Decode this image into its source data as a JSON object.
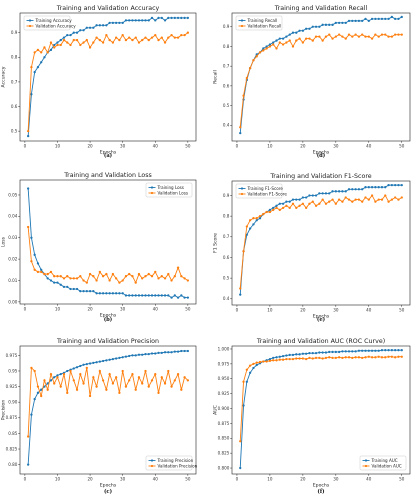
{
  "colors": {
    "training": "#1f77b4",
    "validation": "#ff7f0e"
  },
  "chart_data": [
    {
      "type": "line",
      "caption": "(a)",
      "title": "Training and Validation Accuracy",
      "xlabel": "Epochs",
      "ylabel": "Accuracy",
      "xlim": [
        -1.5,
        52.5
      ],
      "ylim": [
        0.46,
        0.98
      ],
      "xticks": [
        0,
        10,
        20,
        30,
        40,
        50
      ],
      "yticks": [
        0.5,
        0.6,
        0.7,
        0.8,
        0.9
      ],
      "legend": "top-left",
      "x": [
        1,
        2,
        3,
        4,
        5,
        6,
        7,
        8,
        9,
        10,
        11,
        12,
        13,
        14,
        15,
        16,
        17,
        18,
        19,
        20,
        21,
        22,
        23,
        24,
        25,
        26,
        27,
        28,
        29,
        30,
        31,
        32,
        33,
        34,
        35,
        36,
        37,
        38,
        39,
        40,
        41,
        42,
        43,
        44,
        45,
        46,
        47,
        48,
        49,
        50
      ],
      "series": [
        {
          "name": "Training Accuracy",
          "values": [
            0.48,
            0.65,
            0.74,
            0.76,
            0.78,
            0.8,
            0.82,
            0.83,
            0.85,
            0.86,
            0.87,
            0.88,
            0.89,
            0.89,
            0.9,
            0.9,
            0.91,
            0.91,
            0.92,
            0.92,
            0.92,
            0.93,
            0.93,
            0.93,
            0.93,
            0.94,
            0.94,
            0.94,
            0.94,
            0.94,
            0.95,
            0.95,
            0.95,
            0.95,
            0.95,
            0.95,
            0.95,
            0.95,
            0.96,
            0.95,
            0.96,
            0.96,
            0.95,
            0.96,
            0.96,
            0.96,
            0.96,
            0.96,
            0.96,
            0.96
          ]
        },
        {
          "name": "Validation Accuracy",
          "values": [
            0.5,
            0.76,
            0.82,
            0.83,
            0.82,
            0.84,
            0.82,
            0.86,
            0.84,
            0.85,
            0.85,
            0.87,
            0.86,
            0.85,
            0.87,
            0.87,
            0.85,
            0.86,
            0.87,
            0.84,
            0.86,
            0.88,
            0.87,
            0.86,
            0.89,
            0.87,
            0.86,
            0.88,
            0.87,
            0.89,
            0.87,
            0.88,
            0.87,
            0.88,
            0.86,
            0.87,
            0.88,
            0.87,
            0.88,
            0.89,
            0.87,
            0.88,
            0.86,
            0.88,
            0.89,
            0.88,
            0.88,
            0.89,
            0.89,
            0.9
          ]
        }
      ]
    },
    {
      "type": "line",
      "caption": "(d)",
      "title": "Training and Validation Recall",
      "xlabel": "Epochs",
      "ylabel": "Recall",
      "xlim": [
        -1.5,
        52.5
      ],
      "ylim": [
        0.32,
        0.97
      ],
      "xticks": [
        0,
        10,
        20,
        30,
        40,
        50
      ],
      "yticks": [
        0.4,
        0.5,
        0.6,
        0.7,
        0.8,
        0.9
      ],
      "legend": "top-left",
      "x": [
        1,
        2,
        3,
        4,
        5,
        6,
        7,
        8,
        9,
        10,
        11,
        12,
        13,
        14,
        15,
        16,
        17,
        18,
        19,
        20,
        21,
        22,
        23,
        24,
        25,
        26,
        27,
        28,
        29,
        30,
        31,
        32,
        33,
        34,
        35,
        36,
        37,
        38,
        39,
        40,
        41,
        42,
        43,
        44,
        45,
        46,
        47,
        48,
        49,
        50
      ],
      "series": [
        {
          "name": "Training Recall",
          "values": [
            0.36,
            0.53,
            0.63,
            0.69,
            0.73,
            0.76,
            0.77,
            0.79,
            0.8,
            0.81,
            0.82,
            0.83,
            0.84,
            0.84,
            0.85,
            0.86,
            0.87,
            0.87,
            0.88,
            0.88,
            0.89,
            0.89,
            0.9,
            0.9,
            0.9,
            0.91,
            0.91,
            0.91,
            0.91,
            0.92,
            0.92,
            0.92,
            0.92,
            0.93,
            0.93,
            0.93,
            0.93,
            0.93,
            0.94,
            0.93,
            0.94,
            0.94,
            0.94,
            0.94,
            0.94,
            0.94,
            0.95,
            0.94,
            0.94,
            0.95
          ]
        },
        {
          "name": "Validation Recall",
          "values": [
            0.39,
            0.55,
            0.64,
            0.69,
            0.73,
            0.75,
            0.77,
            0.78,
            0.79,
            0.8,
            0.81,
            0.79,
            0.82,
            0.81,
            0.82,
            0.83,
            0.8,
            0.83,
            0.84,
            0.82,
            0.84,
            0.84,
            0.83,
            0.85,
            0.85,
            0.83,
            0.85,
            0.86,
            0.84,
            0.85,
            0.86,
            0.85,
            0.84,
            0.86,
            0.85,
            0.86,
            0.85,
            0.86,
            0.85,
            0.85,
            0.84,
            0.86,
            0.85,
            0.86,
            0.86,
            0.85,
            0.85,
            0.86,
            0.86,
            0.86
          ]
        }
      ]
    },
    {
      "type": "line",
      "caption": "(b)",
      "title": "Training and Validation Loss",
      "xlabel": "Epochs",
      "ylabel": "Loss",
      "xlim": [
        -1.5,
        52.5
      ],
      "ylim": [
        -0.001,
        0.057
      ],
      "xticks": [
        0,
        10,
        20,
        30,
        40,
        50
      ],
      "yticks": [
        0.0,
        0.01,
        0.02,
        0.03,
        0.04,
        0.05
      ],
      "ytick_labels": [
        "0.00",
        "0.01",
        "0.02",
        "0.03",
        "0.04",
        "0.05"
      ],
      "legend": "top-right",
      "x": [
        1,
        2,
        3,
        4,
        5,
        6,
        7,
        8,
        9,
        10,
        11,
        12,
        13,
        14,
        15,
        16,
        17,
        18,
        19,
        20,
        21,
        22,
        23,
        24,
        25,
        26,
        27,
        28,
        29,
        30,
        31,
        32,
        33,
        34,
        35,
        36,
        37,
        38,
        39,
        40,
        41,
        42,
        43,
        44,
        45,
        46,
        47,
        48,
        49,
        50
      ],
      "series": [
        {
          "name": "Training Loss",
          "values": [
            0.053,
            0.03,
            0.022,
            0.018,
            0.015,
            0.013,
            0.011,
            0.01,
            0.009,
            0.009,
            0.008,
            0.007,
            0.007,
            0.006,
            0.006,
            0.006,
            0.005,
            0.005,
            0.005,
            0.005,
            0.005,
            0.004,
            0.004,
            0.004,
            0.004,
            0.004,
            0.004,
            0.004,
            0.004,
            0.004,
            0.003,
            0.003,
            0.003,
            0.003,
            0.003,
            0.003,
            0.003,
            0.003,
            0.003,
            0.003,
            0.003,
            0.003,
            0.003,
            0.003,
            0.002,
            0.003,
            0.002,
            0.003,
            0.002,
            0.002
          ]
        },
        {
          "name": "Validation Loss",
          "values": [
            0.035,
            0.019,
            0.015,
            0.014,
            0.014,
            0.013,
            0.013,
            0.014,
            0.012,
            0.012,
            0.012,
            0.011,
            0.012,
            0.011,
            0.011,
            0.011,
            0.012,
            0.01,
            0.009,
            0.013,
            0.012,
            0.01,
            0.014,
            0.012,
            0.013,
            0.01,
            0.013,
            0.011,
            0.009,
            0.01,
            0.012,
            0.013,
            0.012,
            0.009,
            0.013,
            0.011,
            0.012,
            0.013,
            0.012,
            0.014,
            0.011,
            0.012,
            0.011,
            0.013,
            0.01,
            0.012,
            0.016,
            0.012,
            0.011,
            0.01
          ]
        }
      ]
    },
    {
      "type": "line",
      "caption": "(e)",
      "title": "Training and Validation F1-Score",
      "xlabel": "Epochs",
      "ylabel": "F1 Score",
      "xlim": [
        -1.5,
        52.5
      ],
      "ylim": [
        0.37,
        0.97
      ],
      "xticks": [
        0,
        10,
        20,
        30,
        40,
        50
      ],
      "yticks": [
        0.4,
        0.5,
        0.6,
        0.7,
        0.8,
        0.9
      ],
      "legend": "top-left",
      "x": [
        1,
        2,
        3,
        4,
        5,
        6,
        7,
        8,
        9,
        10,
        11,
        12,
        13,
        14,
        15,
        16,
        17,
        18,
        19,
        20,
        21,
        22,
        23,
        24,
        25,
        26,
        27,
        28,
        29,
        30,
        31,
        32,
        33,
        34,
        35,
        36,
        37,
        38,
        39,
        40,
        41,
        42,
        43,
        44,
        45,
        46,
        47,
        48,
        49,
        50
      ],
      "series": [
        {
          "name": "Training F1-Score",
          "values": [
            0.42,
            0.63,
            0.71,
            0.74,
            0.76,
            0.78,
            0.79,
            0.81,
            0.82,
            0.83,
            0.84,
            0.85,
            0.86,
            0.86,
            0.87,
            0.87,
            0.88,
            0.88,
            0.88,
            0.89,
            0.89,
            0.9,
            0.9,
            0.9,
            0.91,
            0.91,
            0.91,
            0.91,
            0.92,
            0.92,
            0.92,
            0.92,
            0.92,
            0.93,
            0.93,
            0.93,
            0.93,
            0.93,
            0.94,
            0.94,
            0.94,
            0.94,
            0.94,
            0.94,
            0.94,
            0.95,
            0.95,
            0.95,
            0.95,
            0.95
          ]
        },
        {
          "name": "Validation F1-Score",
          "values": [
            0.45,
            0.63,
            0.75,
            0.78,
            0.79,
            0.79,
            0.8,
            0.81,
            0.82,
            0.82,
            0.83,
            0.84,
            0.83,
            0.84,
            0.85,
            0.84,
            0.86,
            0.84,
            0.85,
            0.86,
            0.84,
            0.86,
            0.87,
            0.85,
            0.86,
            0.88,
            0.86,
            0.87,
            0.88,
            0.86,
            0.88,
            0.87,
            0.89,
            0.88,
            0.87,
            0.88,
            0.88,
            0.87,
            0.89,
            0.88,
            0.9,
            0.87,
            0.88,
            0.88,
            0.9,
            0.87,
            0.88,
            0.89,
            0.88,
            0.89
          ]
        }
      ]
    },
    {
      "type": "line",
      "caption": "(c)",
      "title": "Training and Validation Precision",
      "xlabel": "Epochs",
      "ylabel": "Precision",
      "xlim": [
        -1.5,
        52.5
      ],
      "ylim": [
        0.785,
        0.99
      ],
      "xticks": [
        0,
        10,
        20,
        30,
        40,
        50
      ],
      "yticks": [
        0.8,
        0.825,
        0.85,
        0.875,
        0.9,
        0.925,
        0.95,
        0.975
      ],
      "ytick_labels": [
        "0.80",
        "0.825",
        "0.85",
        "0.875",
        "0.90",
        "0.925",
        "0.95",
        "0.975"
      ],
      "legend": "bottom-right",
      "x": [
        1,
        2,
        3,
        4,
        5,
        6,
        7,
        8,
        9,
        10,
        11,
        12,
        13,
        14,
        15,
        16,
        17,
        18,
        19,
        20,
        21,
        22,
        23,
        24,
        25,
        26,
        27,
        28,
        29,
        30,
        31,
        32,
        33,
        34,
        35,
        36,
        37,
        38,
        39,
        40,
        41,
        42,
        43,
        44,
        45,
        46,
        47,
        48,
        49,
        50
      ],
      "series": [
        {
          "name": "Training Precision",
          "values": [
            0.8,
            0.88,
            0.905,
            0.915,
            0.92,
            0.925,
            0.93,
            0.935,
            0.94,
            0.943,
            0.945,
            0.947,
            0.95,
            0.952,
            0.954,
            0.956,
            0.958,
            0.96,
            0.961,
            0.962,
            0.963,
            0.964,
            0.965,
            0.966,
            0.967,
            0.968,
            0.969,
            0.97,
            0.971,
            0.972,
            0.973,
            0.974,
            0.975,
            0.975,
            0.976,
            0.976,
            0.977,
            0.977,
            0.978,
            0.978,
            0.979,
            0.979,
            0.98,
            0.98,
            0.98,
            0.981,
            0.981,
            0.982,
            0.982,
            0.982
          ]
        },
        {
          "name": "Validation Precision",
          "values": [
            0.845,
            0.955,
            0.95,
            0.925,
            0.91,
            0.935,
            0.92,
            0.945,
            0.93,
            0.94,
            0.925,
            0.945,
            0.915,
            0.95,
            0.935,
            0.92,
            0.945,
            0.93,
            0.955,
            0.91,
            0.94,
            0.925,
            0.95,
            0.935,
            0.92,
            0.945,
            0.93,
            0.94,
            0.915,
            0.95,
            0.925,
            0.935,
            0.945,
            0.92,
            0.94,
            0.93,
            0.95,
            0.925,
            0.935,
            0.945,
            0.915,
            0.94,
            0.93,
            0.95,
            0.925,
            0.935,
            0.945,
            0.92,
            0.94,
            0.935
          ]
        }
      ]
    },
    {
      "type": "line",
      "caption": "(f)",
      "title": "Training and Validation AUC (ROC Curve)",
      "xlabel": "Epochs",
      "ylabel": "AUC",
      "xlim": [
        -1.5,
        52.5
      ],
      "ylim": [
        0.79,
        1.005
      ],
      "xticks": [
        0,
        10,
        20,
        30,
        40,
        50
      ],
      "yticks": [
        0.8,
        0.825,
        0.85,
        0.875,
        0.9,
        0.925,
        0.95,
        0.975,
        1.0
      ],
      "ytick_labels": [
        "0.800",
        "0.825",
        "0.850",
        "0.875",
        "0.900",
        "0.925",
        "0.950",
        "0.975",
        "1.000"
      ],
      "legend": "bottom-right",
      "x": [
        1,
        2,
        3,
        4,
        5,
        6,
        7,
        8,
        9,
        10,
        11,
        12,
        13,
        14,
        15,
        16,
        17,
        18,
        19,
        20,
        21,
        22,
        23,
        24,
        25,
        26,
        27,
        28,
        29,
        30,
        31,
        32,
        33,
        34,
        35,
        36,
        37,
        38,
        39,
        40,
        41,
        42,
        43,
        44,
        45,
        46,
        47,
        48,
        49,
        50
      ],
      "series": [
        {
          "name": "Training AUC",
          "values": [
            0.8,
            0.905,
            0.945,
            0.96,
            0.968,
            0.973,
            0.976,
            0.979,
            0.981,
            0.983,
            0.985,
            0.986,
            0.987,
            0.988,
            0.989,
            0.99,
            0.99,
            0.991,
            0.991,
            0.992,
            0.992,
            0.993,
            0.993,
            0.993,
            0.994,
            0.994,
            0.994,
            0.995,
            0.995,
            0.995,
            0.995,
            0.996,
            0.996,
            0.996,
            0.996,
            0.996,
            0.997,
            0.997,
            0.997,
            0.997,
            0.997,
            0.997,
            0.997,
            0.998,
            0.998,
            0.998,
            0.998,
            0.998,
            0.998,
            0.998
          ]
        },
        {
          "name": "Validation AUC",
          "values": [
            0.845,
            0.945,
            0.965,
            0.972,
            0.975,
            0.977,
            0.978,
            0.979,
            0.979,
            0.98,
            0.981,
            0.981,
            0.982,
            0.982,
            0.983,
            0.983,
            0.983,
            0.984,
            0.984,
            0.984,
            0.983,
            0.985,
            0.984,
            0.985,
            0.985,
            0.984,
            0.985,
            0.986,
            0.985,
            0.985,
            0.986,
            0.985,
            0.986,
            0.986,
            0.985,
            0.986,
            0.986,
            0.985,
            0.986,
            0.987,
            0.986,
            0.986,
            0.987,
            0.986,
            0.986,
            0.987,
            0.987,
            0.986,
            0.987,
            0.987
          ]
        }
      ]
    }
  ]
}
